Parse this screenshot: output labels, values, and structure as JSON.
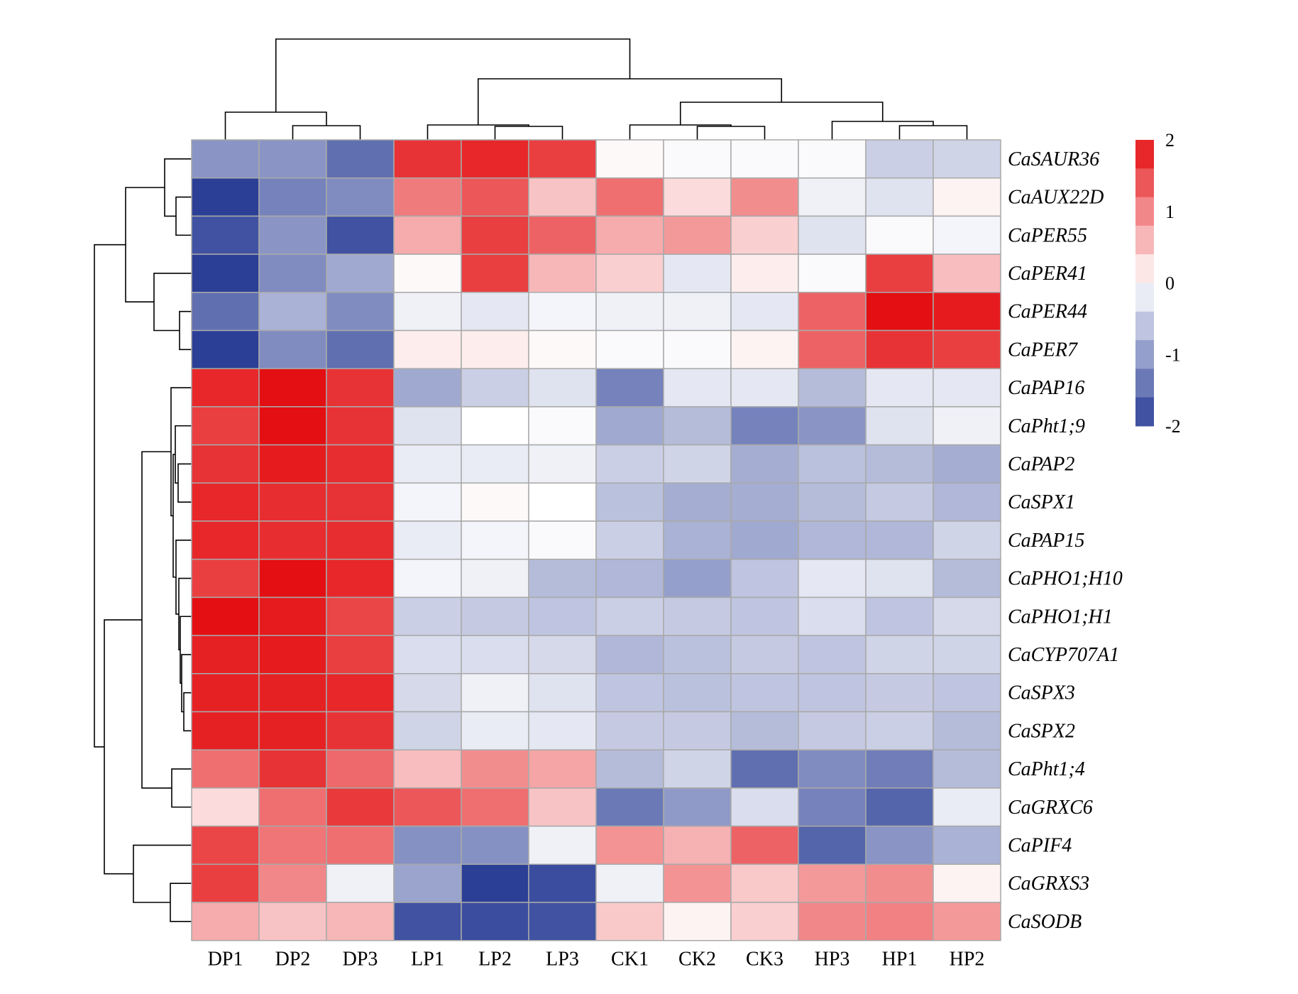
{
  "chart_data": {
    "type": "heatmap",
    "title": "",
    "columns": [
      "DP1",
      "DP2",
      "DP3",
      "LP1",
      "LP2",
      "LP3",
      "CK1",
      "CK2",
      "CK3",
      "HP3",
      "HP1",
      "HP2"
    ],
    "rows": [
      "CaSAUR36",
      "CaAUX22D",
      "CaPER55",
      "CaPER41",
      "CaPER44",
      "CaPER7",
      "CaPAP16",
      "CaPht1;9",
      "CaPAP2",
      "CaSPX1",
      "CaPAP15",
      "CaPHO1;H10",
      "CaPHO1;H1",
      "CaCYP707A1",
      "CaSPX3",
      "CaSPX2",
      "CaPht1;4",
      "CaGRXC6",
      "CaPIF4",
      "CaGRXS3",
      "CaSODB"
    ],
    "values": [
      [
        -1.1,
        -1.1,
        -1.5,
        1.7,
        1.8,
        1.6,
        0.05,
        -0.05,
        -0.05,
        -0.05,
        -0.5,
        -0.45
      ],
      [
        -2.0,
        -1.3,
        -1.2,
        1.1,
        1.4,
        0.5,
        1.2,
        0.3,
        0.95,
        -0.15,
        -0.3,
        0.1
      ],
      [
        -1.8,
        -1.1,
        -1.8,
        0.7,
        1.6,
        1.3,
        0.7,
        0.85,
        0.4,
        -0.3,
        -0.05,
        -0.1
      ],
      [
        -2.0,
        -1.2,
        -0.9,
        0.05,
        1.6,
        0.6,
        0.4,
        -0.25,
        0.15,
        -0.05,
        1.6,
        0.55
      ],
      [
        -1.5,
        -0.8,
        -1.2,
        -0.15,
        -0.25,
        -0.1,
        -0.15,
        -0.15,
        -0.25,
        1.3,
        2.0,
        1.9
      ],
      [
        -2.0,
        -1.2,
        -1.5,
        0.15,
        0.15,
        0.05,
        -0.05,
        -0.05,
        0.1,
        1.3,
        1.7,
        1.6
      ],
      [
        1.8,
        2.0,
        1.7,
        -0.9,
        -0.5,
        -0.3,
        -1.3,
        -0.25,
        -0.25,
        -0.7,
        -0.25,
        -0.25
      ],
      [
        1.6,
        2.0,
        1.7,
        -0.3,
        0.0,
        -0.05,
        -0.9,
        -0.7,
        -1.3,
        -1.1,
        -0.3,
        -0.15
      ],
      [
        1.7,
        1.9,
        1.75,
        -0.2,
        -0.2,
        -0.15,
        -0.5,
        -0.45,
        -0.85,
        -0.65,
        -0.7,
        -0.85
      ],
      [
        1.8,
        1.75,
        1.7,
        -0.1,
        0.05,
        0.0,
        -0.65,
        -0.85,
        -0.85,
        -0.7,
        -0.55,
        -0.75
      ],
      [
        1.8,
        1.75,
        1.75,
        -0.2,
        -0.1,
        -0.05,
        -0.5,
        -0.8,
        -0.9,
        -0.75,
        -0.75,
        -0.45
      ],
      [
        1.6,
        2.05,
        1.8,
        -0.1,
        -0.15,
        -0.7,
        -0.75,
        -1.0,
        -0.6,
        -0.25,
        -0.3,
        -0.7
      ],
      [
        2.05,
        1.9,
        1.55,
        -0.5,
        -0.55,
        -0.6,
        -0.5,
        -0.55,
        -0.6,
        -0.35,
        -0.6,
        -0.4
      ],
      [
        1.85,
        1.9,
        1.6,
        -0.35,
        -0.35,
        -0.4,
        -0.75,
        -0.65,
        -0.55,
        -0.6,
        -0.45,
        -0.45
      ],
      [
        1.85,
        1.85,
        1.8,
        -0.4,
        -0.15,
        -0.3,
        -0.6,
        -0.65,
        -0.6,
        -0.6,
        -0.55,
        -0.6
      ],
      [
        1.85,
        1.85,
        1.7,
        -0.45,
        -0.2,
        -0.25,
        -0.55,
        -0.55,
        -0.7,
        -0.55,
        -0.5,
        -0.7
      ],
      [
        1.2,
        1.7,
        1.25,
        0.55,
        0.95,
        0.75,
        -0.7,
        -0.45,
        -1.5,
        -1.2,
        -1.35,
        -0.7
      ],
      [
        0.3,
        1.2,
        1.65,
        1.4,
        1.2,
        0.5,
        -1.4,
        -1.05,
        -0.35,
        -1.3,
        -1.6,
        -0.2
      ],
      [
        1.55,
        1.15,
        1.2,
        -1.15,
        -1.15,
        -0.15,
        0.9,
        0.65,
        1.3,
        -1.6,
        -1.1,
        -0.8
      ],
      [
        1.6,
        1.0,
        -0.15,
        -0.95,
        -2.0,
        -1.85,
        -0.15,
        0.9,
        0.45,
        0.85,
        0.95,
        0.1
      ],
      [
        0.7,
        0.5,
        0.6,
        -1.8,
        -1.85,
        -1.8,
        0.45,
        0.1,
        0.4,
        1.0,
        1.05,
        0.85
      ]
    ],
    "color_scale": {
      "min": -2,
      "max": 2,
      "low": "#2b3f96",
      "mid": "#ffffff",
      "high": "#e40f12"
    },
    "legend_ticks": [
      "2",
      "1",
      "0",
      "-1",
      "-2"
    ],
    "legend_values": [
      2,
      1,
      0,
      -1,
      -2
    ]
  }
}
